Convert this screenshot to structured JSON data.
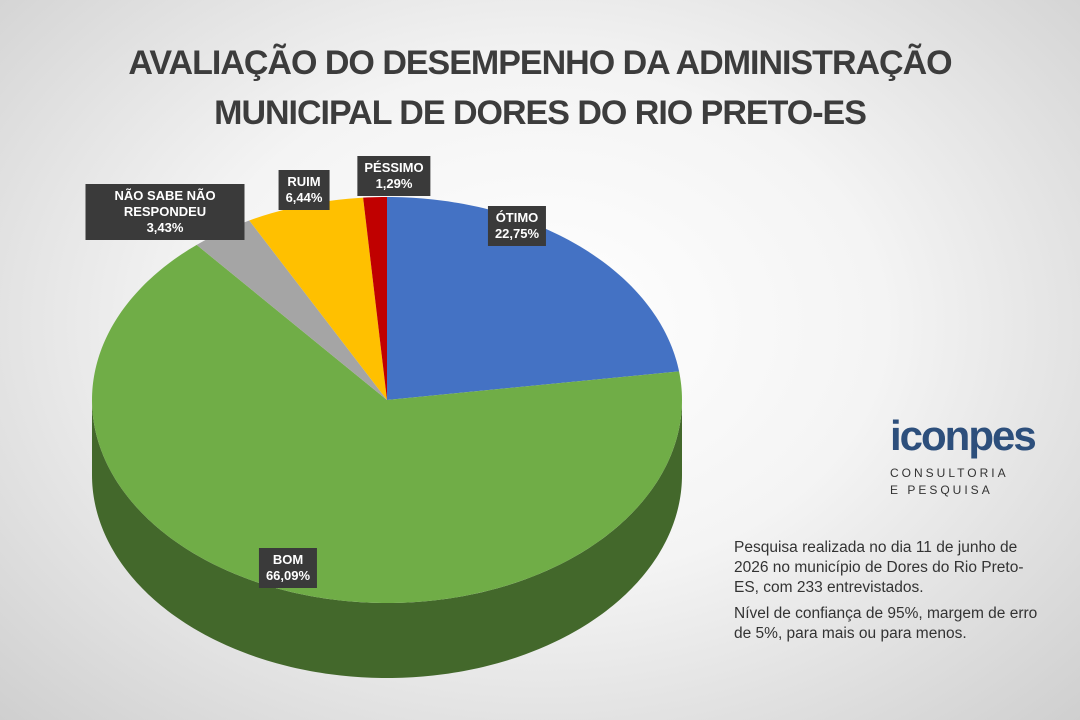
{
  "chart_data": {
    "type": "pie",
    "title": "AVALIAÇÃO DO DESEMPENHO DA ADMINISTRAÇÃO MUNICIPAL DE DORES DO RIO PRETO-ES",
    "categories": [
      "ÓTIMO",
      "BOM",
      "NÃO SABE NÃO RESPONDEU",
      "RUIM",
      "PÉSSIMO"
    ],
    "values": [
      22.75,
      66.09,
      3.43,
      6.44,
      1.29
    ],
    "value_labels": [
      "22,75%",
      "66,09%",
      "3,43%",
      "6,44%",
      "1,29%"
    ],
    "colors": [
      "#4472c4",
      "#70ad47",
      "#a5a5a5",
      "#ffc000",
      "#c00000"
    ]
  },
  "brand": {
    "name": "iconpes",
    "tagline_1": "CONSULTORIA",
    "tagline_2": "E PESQUISA"
  },
  "notes": [
    "Pesquisa realizada no dia 11 de junho de 2026 no município de Dores do Rio Preto-ES, com 233 entrevistados.",
    "Nível de confiança de 95%, margem de erro de 5%, para mais ou para menos."
  ]
}
